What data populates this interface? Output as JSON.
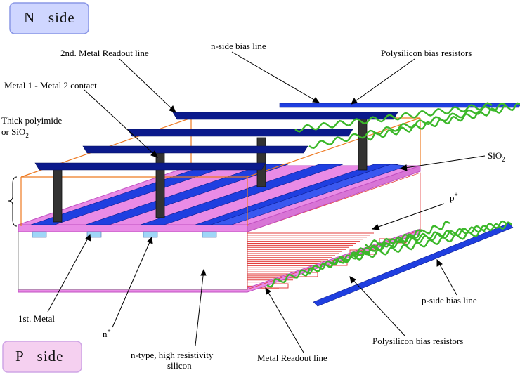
{
  "side_boxes": {
    "top": "N   side",
    "bottom": "P   side"
  },
  "labels": {
    "n_side_bias_line": "n-side bias line",
    "second_metal_readout": "2nd. Metal Readout line",
    "poly_resistors_top": "Polysilicon bias resistors",
    "metal_contact": "Metal 1 - Metal 2 contact",
    "thick_polyimide_line1": "Thick polyimide",
    "thick_polyimide_line2": "or SiO",
    "thick_polyimide_sub": "2",
    "sio2": "SiO",
    "sio2_sub": "2",
    "p_plus": "p",
    "p_plus_sup": "+",
    "p_side_bias_line": "p-side bias line",
    "first_metal": "1st. Metal",
    "n_plus": "n",
    "n_plus_sup": "+",
    "ntype_line1": "n-type, high resistivity",
    "ntype_line2": "silicon",
    "poly_resistors_bottom": "Polysilicon bias resistors",
    "metal_readout_line": "Metal Readout line"
  },
  "colors": {
    "navy_metal": "#0b1a8c",
    "blue_strip": "#1f3fe0",
    "pink_oxide": "#e98be6",
    "pink_edge": "#c050c0",
    "orange_frame": "#ee7a22",
    "green_resistor": "#3cb82a",
    "red_pstrip": "#e33b3b",
    "side_box_fill": "#cfd6ff",
    "side_box_border": "#8a97e6"
  }
}
